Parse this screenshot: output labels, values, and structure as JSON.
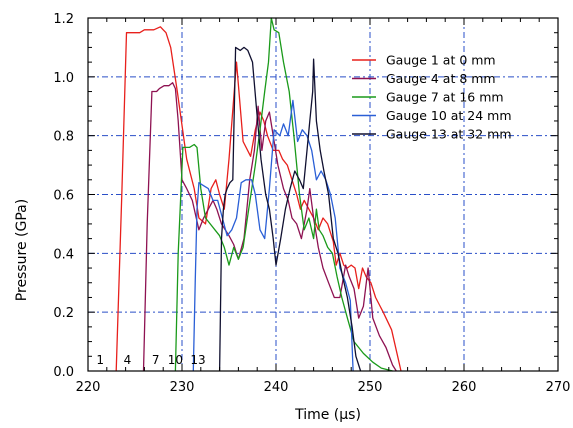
{
  "chart_data": {
    "type": "line",
    "title": "",
    "xlabel": "Time (µs)",
    "ylabel": "Pressure (GPa)",
    "xlim": [
      220,
      270
    ],
    "ylim": [
      0.0,
      1.2
    ],
    "x_ticks": [
      "220",
      "230",
      "240",
      "250",
      "260",
      "270"
    ],
    "y_ticks": [
      "0.0",
      "0.2",
      "0.4",
      "0.6",
      "0.8",
      "1.0",
      "1.2"
    ],
    "grid": true,
    "legend_position": "top-right",
    "gauge_markers": [
      {
        "label": "1",
        "x": 221.3
      },
      {
        "label": "4",
        "x": 224.2
      },
      {
        "label": "7",
        "x": 227.2
      },
      {
        "label": "10",
        "x": 229.3
      },
      {
        "label": "13",
        "x": 231.7
      }
    ],
    "series": [
      {
        "name": "Gauge 1 at 0 mm",
        "color": "#e8201c",
        "points": [
          [
            223.0,
            0
          ],
          [
            223.6,
            0.6
          ],
          [
            224.1,
            1.15
          ],
          [
            225.5,
            1.15
          ],
          [
            226.0,
            1.16
          ],
          [
            227.0,
            1.16
          ],
          [
            227.7,
            1.17
          ],
          [
            228.0,
            1.16
          ],
          [
            228.3,
            1.15
          ],
          [
            228.8,
            1.1
          ],
          [
            229.5,
            0.95
          ],
          [
            230.5,
            0.72
          ],
          [
            231.3,
            0.62
          ],
          [
            231.8,
            0.52
          ],
          [
            232.5,
            0.5
          ],
          [
            233.1,
            0.62
          ],
          [
            233.6,
            0.65
          ],
          [
            234.0,
            0.6
          ],
          [
            234.5,
            0.55
          ],
          [
            235.0,
            0.72
          ],
          [
            235.8,
            1.05
          ],
          [
            236.5,
            0.78
          ],
          [
            237.3,
            0.73
          ],
          [
            237.8,
            0.82
          ],
          [
            238.3,
            0.88
          ],
          [
            238.7,
            0.85
          ],
          [
            239.1,
            0.8
          ],
          [
            239.7,
            0.75
          ],
          [
            240.3,
            0.75
          ],
          [
            240.7,
            0.72
          ],
          [
            241.2,
            0.7
          ],
          [
            241.7,
            0.65
          ],
          [
            242.2,
            0.6
          ],
          [
            242.6,
            0.55
          ],
          [
            243.0,
            0.58
          ],
          [
            243.5,
            0.55
          ],
          [
            244.0,
            0.52
          ],
          [
            244.5,
            0.48
          ],
          [
            245.0,
            0.52
          ],
          [
            245.5,
            0.5
          ],
          [
            246.1,
            0.44
          ],
          [
            246.4,
            0.36
          ],
          [
            246.8,
            0.4
          ],
          [
            247.2,
            0.36
          ],
          [
            247.6,
            0.35
          ],
          [
            248.0,
            0.36
          ],
          [
            248.4,
            0.35
          ],
          [
            248.8,
            0.28
          ],
          [
            249.2,
            0.35
          ],
          [
            249.6,
            0.32
          ],
          [
            250.1,
            0.3
          ],
          [
            250.6,
            0.25
          ],
          [
            251.4,
            0.2
          ],
          [
            252.3,
            0.14
          ],
          [
            253.3,
            0
          ]
        ]
      },
      {
        "name": "Gauge 4 at 8 mm",
        "color": "#8e1252",
        "points": [
          [
            225.9,
            0
          ],
          [
            226.3,
            0.5
          ],
          [
            226.8,
            0.95
          ],
          [
            227.3,
            0.95
          ],
          [
            227.6,
            0.96
          ],
          [
            228.1,
            0.97
          ],
          [
            228.6,
            0.97
          ],
          [
            229.0,
            0.98
          ],
          [
            229.3,
            0.96
          ],
          [
            229.6,
            0.85
          ],
          [
            230.0,
            0.65
          ],
          [
            230.5,
            0.62
          ],
          [
            231.1,
            0.58
          ],
          [
            231.8,
            0.48
          ],
          [
            232.3,
            0.52
          ],
          [
            232.8,
            0.55
          ],
          [
            233.3,
            0.58
          ],
          [
            233.7,
            0.55
          ],
          [
            234.2,
            0.5
          ],
          [
            235.0,
            0.46
          ],
          [
            235.5,
            0.43
          ],
          [
            236.0,
            0.38
          ],
          [
            236.6,
            0.45
          ],
          [
            237.2,
            0.65
          ],
          [
            237.7,
            0.75
          ],
          [
            238.1,
            0.9
          ],
          [
            238.5,
            0.75
          ],
          [
            238.9,
            0.85
          ],
          [
            239.3,
            0.88
          ],
          [
            239.7,
            0.8
          ],
          [
            240.2,
            0.7
          ],
          [
            240.8,
            0.62
          ],
          [
            241.3,
            0.58
          ],
          [
            241.7,
            0.52
          ],
          [
            242.2,
            0.5
          ],
          [
            242.7,
            0.45
          ],
          [
            243.3,
            0.55
          ],
          [
            243.6,
            0.62
          ],
          [
            244.0,
            0.52
          ],
          [
            244.5,
            0.42
          ],
          [
            245.0,
            0.35
          ],
          [
            245.6,
            0.3
          ],
          [
            246.2,
            0.25
          ],
          [
            246.8,
            0.25
          ],
          [
            247.4,
            0.36
          ],
          [
            247.8,
            0.32
          ],
          [
            248.3,
            0.28
          ],
          [
            248.8,
            0.18
          ],
          [
            249.3,
            0.22
          ],
          [
            249.8,
            0.35
          ],
          [
            250.3,
            0.18
          ],
          [
            251.0,
            0.12
          ],
          [
            251.7,
            0.08
          ],
          [
            252.4,
            0.02
          ],
          [
            252.8,
            0
          ]
        ]
      },
      {
        "name": "Gauge 7 at 16 mm",
        "color": "#1a9a1a",
        "points": [
          [
            229.3,
            0
          ],
          [
            229.6,
            0.4
          ],
          [
            230.1,
            0.76
          ],
          [
            230.8,
            0.76
          ],
          [
            231.3,
            0.77
          ],
          [
            231.6,
            0.76
          ],
          [
            232.0,
            0.62
          ],
          [
            232.5,
            0.52
          ],
          [
            233.0,
            0.5
          ],
          [
            233.5,
            0.48
          ],
          [
            234.0,
            0.46
          ],
          [
            234.5,
            0.42
          ],
          [
            235.0,
            0.36
          ],
          [
            235.5,
            0.42
          ],
          [
            236.0,
            0.38
          ],
          [
            236.5,
            0.42
          ],
          [
            237.1,
            0.55
          ],
          [
            237.8,
            0.7
          ],
          [
            238.3,
            0.82
          ],
          [
            238.8,
            0.95
          ],
          [
            239.2,
            1.05
          ],
          [
            239.5,
            1.2
          ],
          [
            239.8,
            1.16
          ],
          [
            240.3,
            1.15
          ],
          [
            240.8,
            1.05
          ],
          [
            241.4,
            0.95
          ],
          [
            241.9,
            0.8
          ],
          [
            242.5,
            0.6
          ],
          [
            243.0,
            0.48
          ],
          [
            243.5,
            0.52
          ],
          [
            244.0,
            0.45
          ],
          [
            244.3,
            0.55
          ],
          [
            244.6,
            0.48
          ],
          [
            245.0,
            0.46
          ],
          [
            245.5,
            0.42
          ],
          [
            246.0,
            0.4
          ],
          [
            246.5,
            0.32
          ],
          [
            247.0,
            0.25
          ],
          [
            247.6,
            0.18
          ],
          [
            248.3,
            0.1
          ],
          [
            249.3,
            0.06
          ],
          [
            250.3,
            0.03
          ],
          [
            251.2,
            0.01
          ],
          [
            252.4,
            0
          ]
        ]
      },
      {
        "name": "Gauge 10 at 24 mm",
        "color": "#2a5fd6",
        "points": [
          [
            231.2,
            0
          ],
          [
            231.4,
            0.3
          ],
          [
            231.6,
            0.55
          ],
          [
            231.8,
            0.64
          ],
          [
            232.3,
            0.63
          ],
          [
            232.8,
            0.62
          ],
          [
            233.3,
            0.58
          ],
          [
            233.8,
            0.58
          ],
          [
            234.3,
            0.52
          ],
          [
            234.8,
            0.46
          ],
          [
            235.3,
            0.48
          ],
          [
            235.8,
            0.52
          ],
          [
            236.3,
            0.64
          ],
          [
            236.8,
            0.65
          ],
          [
            237.4,
            0.65
          ],
          [
            237.8,
            0.6
          ],
          [
            238.3,
            0.48
          ],
          [
            238.8,
            0.45
          ],
          [
            239.3,
            0.62
          ],
          [
            239.8,
            0.82
          ],
          [
            240.4,
            0.8
          ],
          [
            240.8,
            0.84
          ],
          [
            241.3,
            0.8
          ],
          [
            241.8,
            0.92
          ],
          [
            242.3,
            0.78
          ],
          [
            242.8,
            0.82
          ],
          [
            243.3,
            0.8
          ],
          [
            243.8,
            0.75
          ],
          [
            244.3,
            0.65
          ],
          [
            244.8,
            0.68
          ],
          [
            245.3,
            0.65
          ],
          [
            245.8,
            0.6
          ],
          [
            246.3,
            0.52
          ],
          [
            246.8,
            0.35
          ],
          [
            247.4,
            0.3
          ],
          [
            247.9,
            0.24
          ],
          [
            248.2,
            0
          ]
        ]
      },
      {
        "name": "Gauge 13 at 32 mm",
        "color": "#101030",
        "points": [
          [
            234.0,
            0
          ],
          [
            234.2,
            0.45
          ],
          [
            234.4,
            0.55
          ],
          [
            234.6,
            0.6
          ],
          [
            234.8,
            0.62
          ],
          [
            235.1,
            0.64
          ],
          [
            235.4,
            0.65
          ],
          [
            235.7,
            1.1
          ],
          [
            236.2,
            1.09
          ],
          [
            236.6,
            1.1
          ],
          [
            237.0,
            1.09
          ],
          [
            237.5,
            1.05
          ],
          [
            237.9,
            0.9
          ],
          [
            238.4,
            0.72
          ],
          [
            238.9,
            0.6
          ],
          [
            239.3,
            0.55
          ],
          [
            239.7,
            0.45
          ],
          [
            240.0,
            0.36
          ],
          [
            240.5,
            0.45
          ],
          [
            241.0,
            0.55
          ],
          [
            241.5,
            0.62
          ],
          [
            242.0,
            0.68
          ],
          [
            242.5,
            0.65
          ],
          [
            242.9,
            0.62
          ],
          [
            243.3,
            0.75
          ],
          [
            243.6,
            0.85
          ],
          [
            243.9,
            0.95
          ],
          [
            244.0,
            1.06
          ],
          [
            244.3,
            0.85
          ],
          [
            244.7,
            0.75
          ],
          [
            245.1,
            0.68
          ],
          [
            245.6,
            0.6
          ],
          [
            246.1,
            0.45
          ],
          [
            246.6,
            0.4
          ],
          [
            247.1,
            0.32
          ],
          [
            247.6,
            0.25
          ],
          [
            248.1,
            0.15
          ],
          [
            248.5,
            0.05
          ],
          [
            249.0,
            0
          ]
        ]
      }
    ]
  }
}
